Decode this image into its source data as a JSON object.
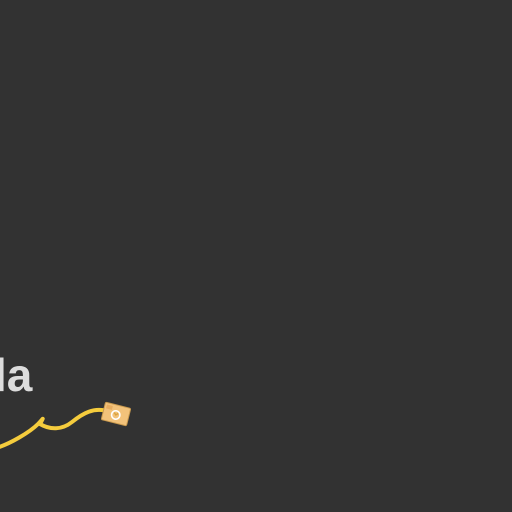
{
  "map": {
    "background_color": "#323232",
    "label_color": "#dcdcdc",
    "route_color": "#f5cc3d",
    "place_label": "la",
    "shield_icon": "route-shield-icon",
    "shield_colors": {
      "fill": "#f2c27a",
      "stroke": "#c99a4e",
      "emblem": "#d9a23f"
    }
  }
}
